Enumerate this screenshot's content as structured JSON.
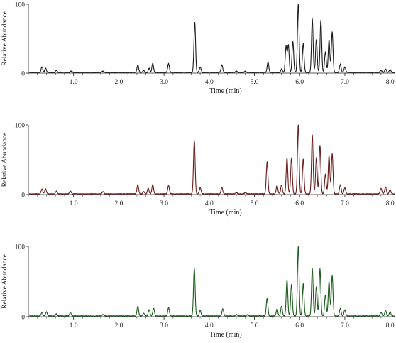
{
  "chart_data": [
    {
      "type": "line",
      "title": "",
      "xlabel": "Time (min)",
      "ylabel": "Relative Abundance",
      "xlim": [
        0,
        8.1
      ],
      "ylim": [
        0,
        100
      ],
      "x_ticks": [
        "1.0",
        "2.0",
        "3.0",
        "4.0",
        "5.0",
        "6.0",
        "7.0",
        "8.0"
      ],
      "y_ticks": [
        "0",
        "100"
      ],
      "color": "#1a1a1a",
      "peaks": [
        [
          0.3,
          8
        ],
        [
          0.38,
          6
        ],
        [
          0.62,
          3
        ],
        [
          0.95,
          2
        ],
        [
          1.65,
          2
        ],
        [
          2.42,
          11
        ],
        [
          2.55,
          3
        ],
        [
          2.67,
          6
        ],
        [
          2.75,
          13
        ],
        [
          3.1,
          13
        ],
        [
          3.68,
          73
        ],
        [
          3.8,
          8
        ],
        [
          4.28,
          11
        ],
        [
          4.6,
          2
        ],
        [
          4.8,
          2
        ],
        [
          5.3,
          15
        ],
        [
          5.6,
          5
        ],
        [
          5.7,
          38
        ],
        [
          5.75,
          40
        ],
        [
          5.85,
          45
        ],
        [
          5.97,
          100
        ],
        [
          6.08,
          42
        ],
        [
          6.28,
          78
        ],
        [
          6.37,
          48
        ],
        [
          6.47,
          76
        ],
        [
          6.57,
          30
        ],
        [
          6.65,
          47
        ],
        [
          6.72,
          59
        ],
        [
          6.9,
          12
        ],
        [
          7.0,
          8
        ],
        [
          7.8,
          3
        ],
        [
          7.9,
          5
        ],
        [
          8.0,
          4
        ]
      ]
    },
    {
      "type": "line",
      "title": "",
      "xlabel": "Time (min)",
      "ylabel": "Relative Abundance",
      "xlim": [
        0,
        8.1
      ],
      "ylim": [
        0,
        100
      ],
      "x_ticks": [
        "1.0",
        "2.0",
        "3.0",
        "4.0",
        "5.0",
        "6.0",
        "7.0",
        "8.0"
      ],
      "y_ticks": [
        "0",
        "100"
      ],
      "color": "#6b1c1c",
      "peaks": [
        [
          0.3,
          7
        ],
        [
          0.38,
          7
        ],
        [
          0.62,
          4
        ],
        [
          0.93,
          4
        ],
        [
          1.65,
          3
        ],
        [
          2.42,
          13
        ],
        [
          2.55,
          3
        ],
        [
          2.65,
          8
        ],
        [
          2.75,
          13
        ],
        [
          3.1,
          12
        ],
        [
          3.67,
          77
        ],
        [
          3.8,
          9
        ],
        [
          4.28,
          9
        ],
        [
          4.6,
          2
        ],
        [
          4.8,
          2
        ],
        [
          5.28,
          46
        ],
        [
          5.5,
          12
        ],
        [
          5.6,
          13
        ],
        [
          5.72,
          52
        ],
        [
          5.82,
          52
        ],
        [
          5.97,
          100
        ],
        [
          6.08,
          50
        ],
        [
          6.28,
          85
        ],
        [
          6.37,
          52
        ],
        [
          6.45,
          70
        ],
        [
          6.57,
          28
        ],
        [
          6.65,
          55
        ],
        [
          6.72,
          58
        ],
        [
          6.9,
          13
        ],
        [
          7.0,
          9
        ],
        [
          7.8,
          8
        ],
        [
          7.9,
          10
        ],
        [
          8.0,
          6
        ]
      ]
    },
    {
      "type": "line",
      "title": "",
      "xlabel": "Time (min)",
      "ylabel": "Relative Abundance",
      "xlim": [
        0,
        8.1
      ],
      "ylim": [
        0,
        100
      ],
      "x_ticks": [
        "1.0",
        "2.0",
        "3.0",
        "4.0",
        "5.0",
        "6.0",
        "7.0",
        "8.0"
      ],
      "y_ticks": [
        "0",
        "100"
      ],
      "color": "#1d5c1d",
      "peaks": [
        [
          0.3,
          5
        ],
        [
          0.4,
          6
        ],
        [
          0.62,
          3
        ],
        [
          0.93,
          5
        ],
        [
          1.65,
          2
        ],
        [
          2.42,
          14
        ],
        [
          2.55,
          4
        ],
        [
          2.67,
          9
        ],
        [
          2.77,
          11
        ],
        [
          3.1,
          12
        ],
        [
          3.67,
          68
        ],
        [
          3.8,
          8
        ],
        [
          4.3,
          10
        ],
        [
          4.6,
          2
        ],
        [
          4.85,
          2
        ],
        [
          5.28,
          25
        ],
        [
          5.5,
          10
        ],
        [
          5.6,
          14
        ],
        [
          5.72,
          52
        ],
        [
          5.82,
          45
        ],
        [
          5.97,
          100
        ],
        [
          6.08,
          46
        ],
        [
          6.28,
          68
        ],
        [
          6.37,
          42
        ],
        [
          6.45,
          67
        ],
        [
          6.57,
          30
        ],
        [
          6.65,
          49
        ],
        [
          6.72,
          58
        ],
        [
          6.9,
          11
        ],
        [
          7.0,
          9
        ],
        [
          7.8,
          5
        ],
        [
          7.9,
          8
        ],
        [
          8.0,
          6
        ]
      ]
    }
  ]
}
